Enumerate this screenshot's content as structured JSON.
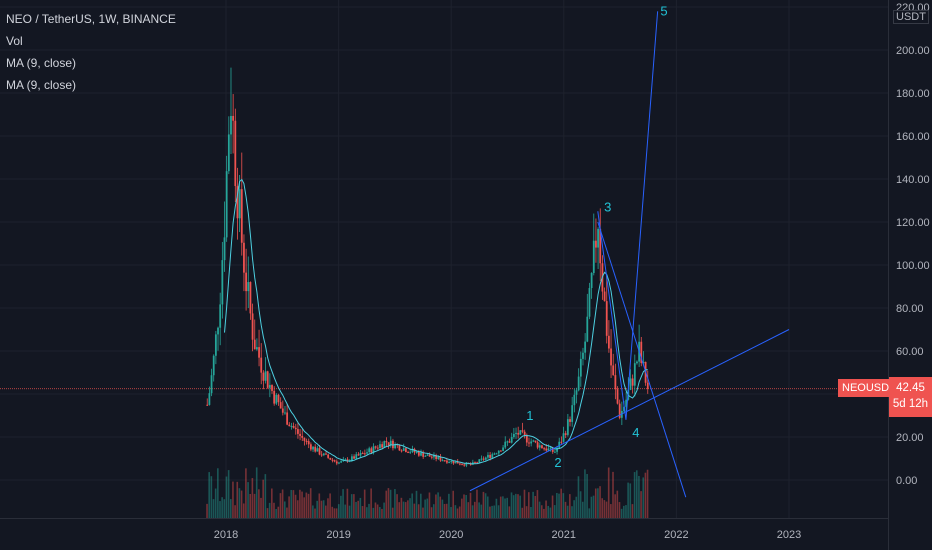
{
  "header": {
    "symbol_title": "NEO / TetherUS, 1W, BINANCE",
    "vol_label": "Vol",
    "ma1_label": "MA (9, close)",
    "ma2_label": "MA (9, close)"
  },
  "price_tag": {
    "symbol": "NEOUSDT",
    "price": "42.45",
    "countdown": "5d 12h"
  },
  "axis": {
    "unit": "USDT"
  },
  "colors": {
    "background": "#131722",
    "up": "#26a69a",
    "down": "#ef5350",
    "ma": "#4dd0e1",
    "trendline": "#2962ff",
    "wave_label": "#22c3d6"
  },
  "chart_data": {
    "type": "candlestick",
    "x_ticks": [
      "2018",
      "2019",
      "2020",
      "2021",
      "2022",
      "2023"
    ],
    "y_ticks": [
      0,
      20,
      40,
      60,
      80,
      100,
      120,
      140,
      160,
      180,
      200,
      220
    ],
    "ylim": [
      -15,
      222
    ],
    "last_price": 42.45,
    "wave_labels": [
      "1",
      "2",
      "3",
      "4",
      "5"
    ],
    "key_points": [
      {
        "date": "2017-11",
        "price": 35
      },
      {
        "date": "2018-01-15",
        "price": 185
      },
      {
        "date": "2018-04",
        "price": 65
      },
      {
        "date": "2018-09",
        "price": 20
      },
      {
        "date": "2019-01",
        "price": 8
      },
      {
        "date": "2019-06",
        "price": 18
      },
      {
        "date": "2020-03",
        "price": 7
      },
      {
        "date": "2020-08",
        "price": 22
      },
      {
        "date": "2020-12",
        "price": 13
      },
      {
        "date": "2021-04-20",
        "price": 125
      },
      {
        "date": "2021-07",
        "price": 30
      },
      {
        "date": "2021-09",
        "price": 60
      },
      {
        "date": "2021-10",
        "price": 42.45
      }
    ]
  }
}
